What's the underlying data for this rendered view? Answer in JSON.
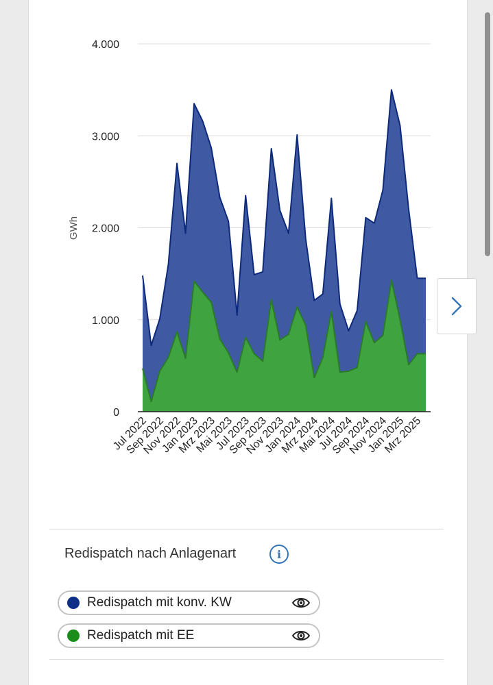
{
  "colors": {
    "konv_fill": "#3f5aa3",
    "konv_line": "#0d2a7a",
    "ee_fill": "#3fa43f",
    "ee_line": "#2a7a2a",
    "konv_dot": "#0e2f87",
    "ee_dot": "#198c19",
    "info": "#3474b6"
  },
  "icons": {
    "next": "chevron-right-icon",
    "info": "info-icon",
    "visibility": "eye-icon"
  },
  "chart_data": {
    "type": "area",
    "stacked": false,
    "ylabel": "GWh",
    "ylim": [
      0,
      4000
    ],
    "yticks": [
      0,
      1000,
      2000,
      3000,
      4000
    ],
    "ytick_labels": [
      "0",
      "1.000",
      "2.000",
      "3.000",
      "4.000"
    ],
    "grid": true,
    "x": [
      "Jul 2022",
      "Aug 2022",
      "Sep 2022",
      "Okt 2022",
      "Nov 2022",
      "Dez 2022",
      "Jan 2023",
      "Feb 2023",
      "Mrz 2023",
      "Apr 2023",
      "Mai 2023",
      "Jun 2023",
      "Jul 2023",
      "Aug 2023",
      "Sep 2023",
      "Okt 2023",
      "Nov 2023",
      "Dez 2023",
      "Jan 2024",
      "Feb 2024",
      "Mrz 2024",
      "Apr 2024",
      "Mai 2024",
      "Jun 2024",
      "Jul 2024",
      "Aug 2024",
      "Sep 2024",
      "Okt 2024",
      "Nov 2024",
      "Dez 2024",
      "Jan 2025",
      "Feb 2025",
      "Mrz 2025",
      "Apr 2025"
    ],
    "x_tick_labels": [
      "Jul 2022",
      "Sep 2022",
      "Nov 2022",
      "Jan 2023",
      "Mrz 2023",
      "Mai 2023",
      "Jul 2023",
      "Sep 2023",
      "Nov 2023",
      "Jan 2024",
      "Mrz 2024",
      "Mai 2024",
      "Jul 2024",
      "Sep 2024",
      "Nov 2024",
      "Jan 2025",
      "Mrz 2025"
    ],
    "series": [
      {
        "name": "Redispatch mit konv. KW",
        "values": [
          1480,
          720,
          1010,
          1600,
          2700,
          1940,
          3350,
          3160,
          2870,
          2330,
          2070,
          1050,
          2350,
          1490,
          1520,
          2860,
          2190,
          1940,
          3010,
          1880,
          1210,
          1280,
          2320,
          1170,
          880,
          1100,
          2110,
          2050,
          2410,
          3500,
          3110,
          2200,
          1450,
          1450
        ]
      },
      {
        "name": "Redispatch mit EE",
        "values": [
          470,
          110,
          440,
          590,
          870,
          580,
          1420,
          1300,
          1190,
          790,
          640,
          430,
          810,
          630,
          550,
          1220,
          780,
          840,
          1140,
          940,
          370,
          590,
          1090,
          430,
          440,
          480,
          980,
          750,
          830,
          1430,
          1000,
          510,
          630,
          630
        ]
      }
    ]
  },
  "legend": {
    "title": "Redispatch nach Anlagenart",
    "items": [
      {
        "label": "Redispatch mit konv. KW"
      },
      {
        "label": "Redispatch mit EE"
      }
    ]
  }
}
